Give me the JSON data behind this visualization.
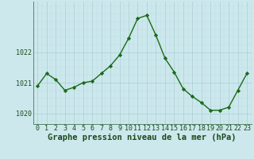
{
  "x": [
    0,
    1,
    2,
    3,
    4,
    5,
    6,
    7,
    8,
    9,
    10,
    11,
    12,
    13,
    14,
    15,
    16,
    17,
    18,
    19,
    20,
    21,
    22,
    23
  ],
  "y": [
    1020.9,
    1021.3,
    1021.1,
    1020.75,
    1020.85,
    1021.0,
    1021.05,
    1021.3,
    1021.55,
    1021.9,
    1022.45,
    1023.1,
    1023.2,
    1022.55,
    1021.8,
    1021.35,
    1020.8,
    1020.55,
    1020.35,
    1020.1,
    1020.1,
    1020.2,
    1020.75,
    1021.3
  ],
  "line_color": "#1a6b1a",
  "marker": "D",
  "marker_size": 2.2,
  "bg_color": "#cce8ec",
  "grid_color_major": "#aacdd4",
  "grid_color_minor": "#bbdae0",
  "xlabel": "Graphe pression niveau de la mer (hPa)",
  "xlabel_fontsize": 7.5,
  "yticks": [
    1020,
    1021,
    1022
  ],
  "ylim": [
    1019.65,
    1023.65
  ],
  "xlim": [
    -0.5,
    23.5
  ],
  "xtick_labels": [
    "0",
    "1",
    "2",
    "3",
    "4",
    "5",
    "6",
    "7",
    "8",
    "9",
    "10",
    "11",
    "12",
    "13",
    "14",
    "15",
    "16",
    "17",
    "18",
    "19",
    "20",
    "21",
    "22",
    "23"
  ],
  "tick_fontsize": 6.0,
  "tick_color": "#1a4a1a",
  "axis_color": "#558866",
  "line_width": 1.0
}
